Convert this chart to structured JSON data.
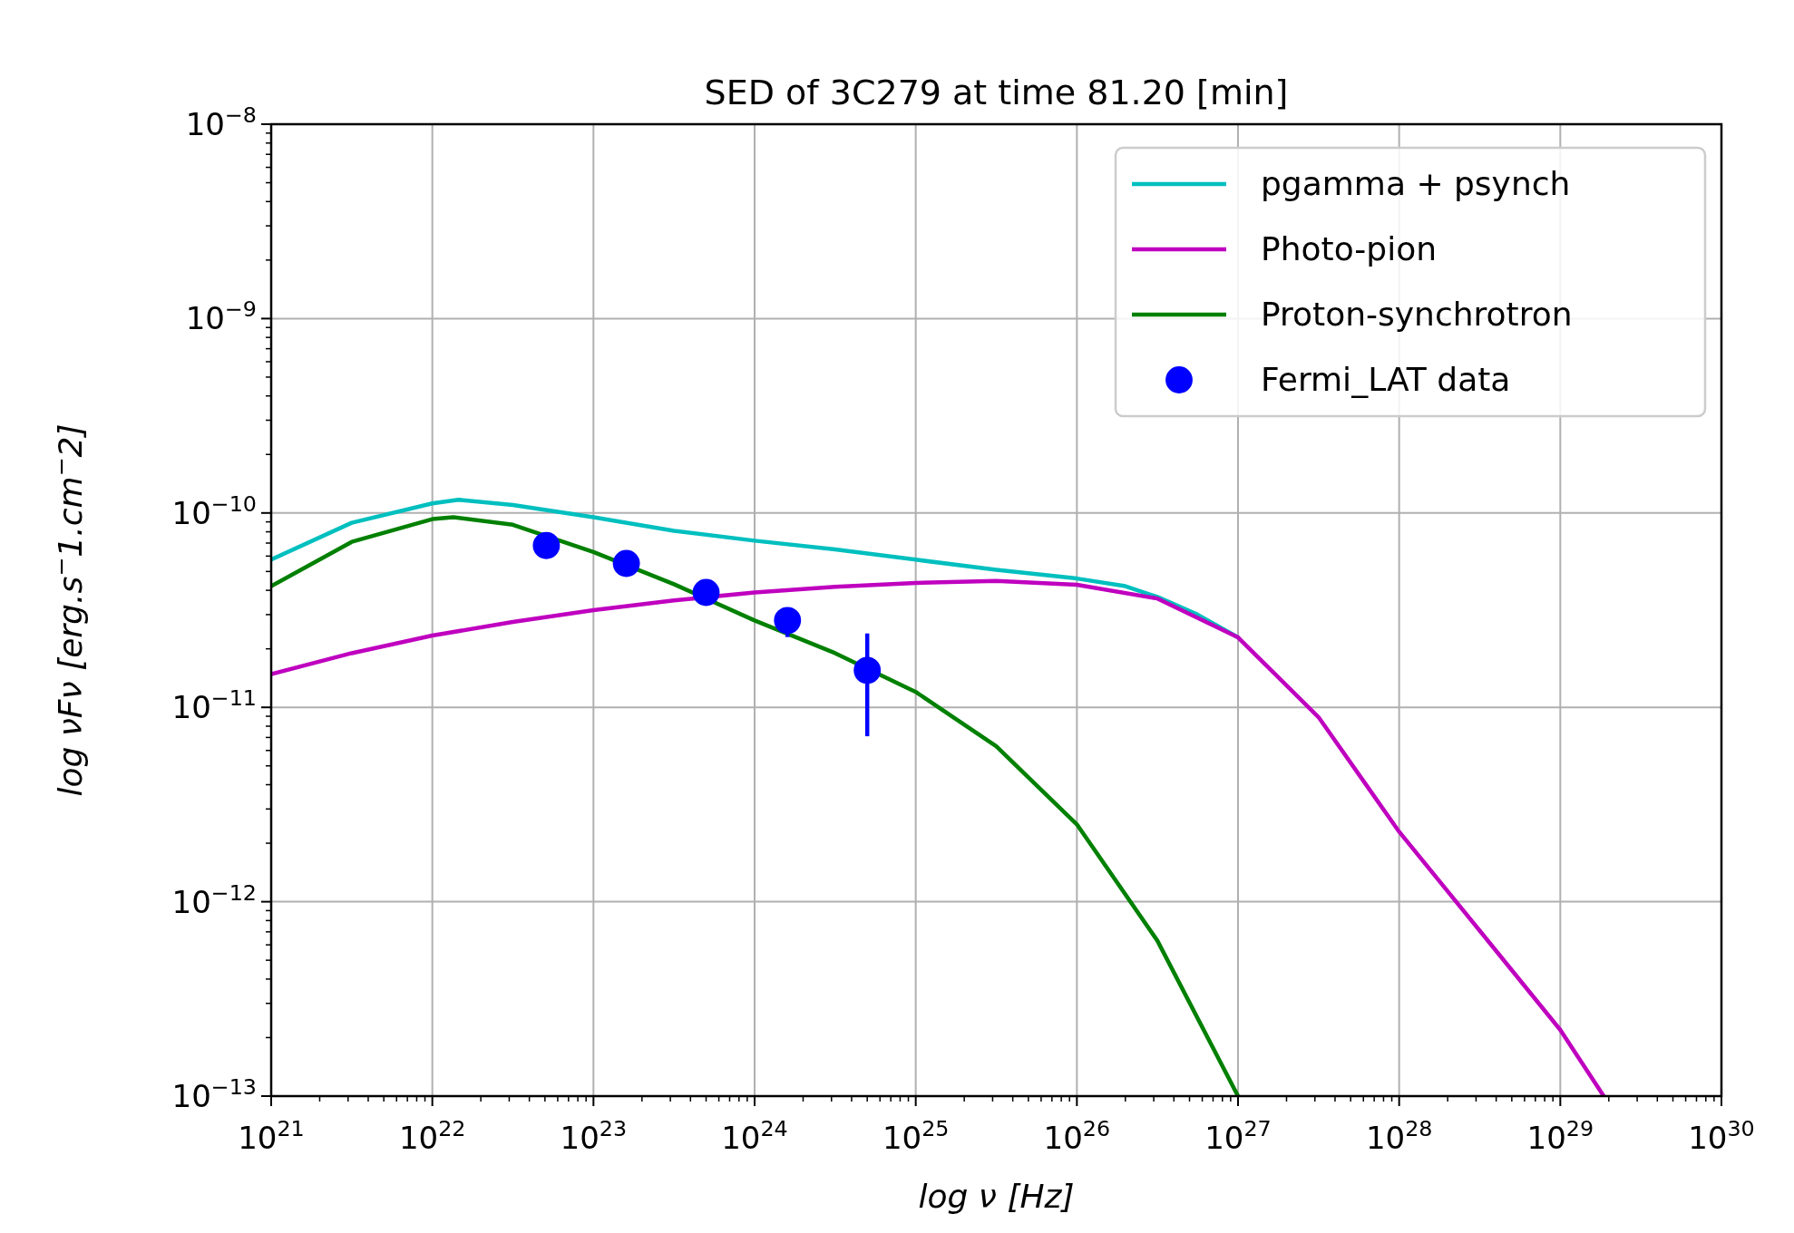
{
  "chart_data": {
    "type": "line",
    "title": "SED of 3C279 at time 81.20 [min]",
    "xlabel": "log ν [Hz]",
    "ylabel": "log νFν [erg.s$^{−}$1.cm$^{−}$2]",
    "log": "xy",
    "grid": true,
    "legend": "top right",
    "xlim": [
      1e+21,
      1e+30
    ],
    "ylim": [
      1e-13,
      1e-08
    ],
    "xticks": [
      {
        "value": 1e+21,
        "label": "10$^{21}$"
      },
      {
        "value": 1e+22,
        "label": "10$^{22}$"
      },
      {
        "value": 1e+23,
        "label": "10$^{23}$"
      },
      {
        "value": 1e+24,
        "label": "10$^{24}$"
      },
      {
        "value": 1e+25,
        "label": "10$^{25}$"
      },
      {
        "value": 1e+26,
        "label": "10$^{26}$"
      },
      {
        "value": 1e+27,
        "label": "10$^{27}$"
      },
      {
        "value": 1e+28,
        "label": "10$^{28}$"
      },
      {
        "value": 1e+29,
        "label": "10$^{29}$"
      },
      {
        "value": 1e+30,
        "label": "10$^{30}$"
      }
    ],
    "yticks": [
      {
        "value": 1e-13,
        "label": "10$^{−13}$"
      },
      {
        "value": 1e-12,
        "label": "10$^{−12}$"
      },
      {
        "value": 1e-11,
        "label": "10$^{−11}$"
      },
      {
        "value": 1e-10,
        "label": "10$^{−10}$"
      },
      {
        "value": 1e-09,
        "label": "10$^{−9}$"
      },
      {
        "value": 1e-08,
        "label": "10$^{−8}$"
      }
    ],
    "series": [
      {
        "name": "pgamma + psynch",
        "color": "#00bfbf",
        "x": [
          1e+21,
          3.16e+21,
          1e+22,
          1.45e+22,
          3.16e+22,
          1e+23,
          3.16e+23,
          1e+24,
          3.16e+24,
          1e+25,
          3.16e+25,
          1e+26,
          2e+26,
          3.16e+26,
          5.6e+26,
          1e+27
        ],
        "values": [
          5.75e-11,
          8.9e-11,
          1.12e-10,
          1.17e-10,
          1.1e-10,
          9.5e-11,
          8.1e-11,
          7.2e-11,
          6.5e-11,
          5.75e-11,
          5.1e-11,
          4.6e-11,
          4.2e-11,
          3.7e-11,
          3e-11,
          2.29e-11
        ]
      },
      {
        "name": "Photo-pion",
        "color": "#bf00bf",
        "x": [
          1e+21,
          3.16e+21,
          1e+22,
          3.16e+22,
          1e+23,
          3.16e+23,
          1e+24,
          3.16e+24,
          1e+25,
          3.16e+25,
          1e+26,
          3.16e+26,
          1e+27,
          3.16e+27,
          1e+28,
          3.16e+28,
          1e+29,
          1.86e+29
        ],
        "values": [
          1.48e-11,
          1.9e-11,
          2.34e-11,
          2.75e-11,
          3.16e-11,
          3.55e-11,
          3.9e-11,
          4.17e-11,
          4.37e-11,
          4.47e-11,
          4.27e-11,
          3.63e-11,
          2.29e-11,
          8.9e-12,
          2.29e-12,
          7.1e-13,
          2.19e-13,
          1e-13
        ]
      },
      {
        "name": "Proton-synchrotron",
        "color": "#008000",
        "x": [
          1e+21,
          3.16e+21,
          1e+22,
          1.35e+22,
          3.16e+22,
          1e+23,
          3.16e+23,
          1e+24,
          3.16e+24,
          1e+25,
          3.16e+25,
          1e+26,
          3.16e+26,
          1e+27
        ],
        "values": [
          4.2e-11,
          7.1e-11,
          9.3e-11,
          9.5e-11,
          8.7e-11,
          6.3e-11,
          4.3e-11,
          2.8e-11,
          1.9e-11,
          1.2e-11,
          6.3e-12,
          2.5e-12,
          6.3e-13,
          1e-13
        ]
      },
      {
        "name": "Fermi_LAT data",
        "type": "scatter",
        "color": "#0000ff",
        "marker": "circle",
        "x": [
          5.1e+22,
          1.6e+23,
          5e+23,
          1.6e+24,
          5e+24
        ],
        "values": [
          6.8e-11,
          5.5e-11,
          3.9e-11,
          2.8e-11,
          1.55e-11
        ],
        "errors": [
          null,
          null,
          null,
          [
            2.3e-11,
            2.8e-11
          ],
          [
            7.1e-12,
            2.4e-11
          ]
        ]
      }
    ]
  }
}
